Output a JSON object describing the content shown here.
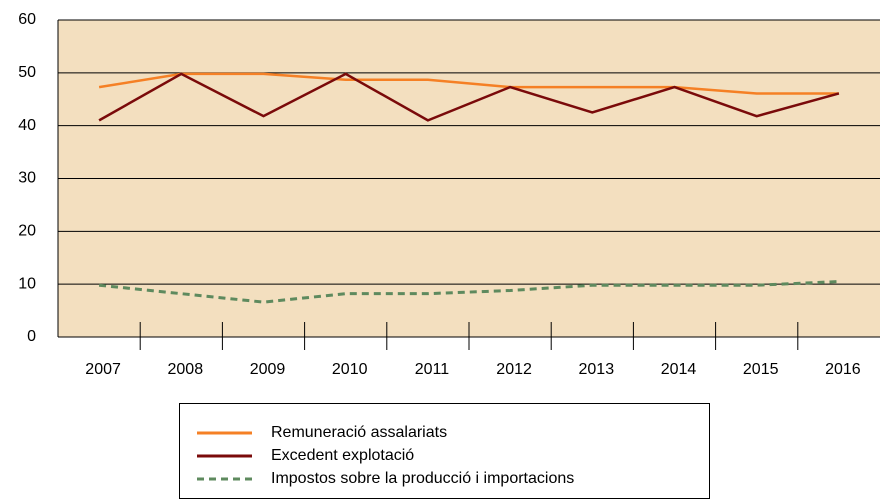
{
  "chart_data": {
    "type": "line",
    "categories": [
      "2007",
      "2008",
      "2009",
      "2010",
      "2011",
      "2012",
      "2013",
      "2014",
      "2015",
      "2016"
    ],
    "series": [
      {
        "name": "Remuneració assalariats",
        "color": "#f58025",
        "dash": "solid",
        "values": [
          47.3,
          49.8,
          49.8,
          48.7,
          48.7,
          47.3,
          47.3,
          47.3,
          46.1,
          46.1
        ]
      },
      {
        "name": "Excedent explotació",
        "color": "#7a0a0a",
        "dash": "solid",
        "values": [
          41,
          49.8,
          41.8,
          49.8,
          41,
          47.3,
          42.5,
          47.3,
          41.8,
          46.1
        ]
      },
      {
        "name": "Impostos sobre la producció i importacions",
        "color": "#5e8a5e",
        "dash": "dashed",
        "values": [
          9.8,
          8.2,
          6.6,
          8.2,
          8.2,
          8.8,
          9.8,
          9.8,
          9.8,
          10.5
        ]
      }
    ],
    "ylim": [
      0,
      60
    ],
    "yticks": [
      0,
      10,
      20,
      30,
      40,
      50,
      60
    ],
    "grid": true,
    "legend": "bottom"
  }
}
